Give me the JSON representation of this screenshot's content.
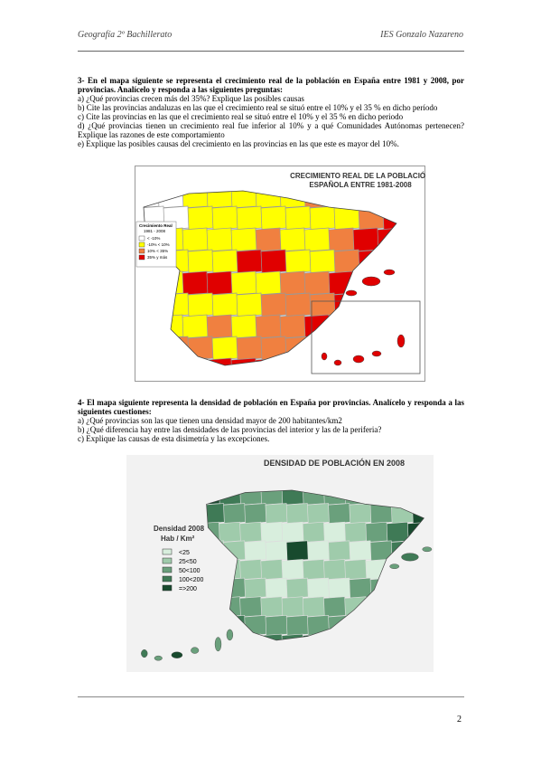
{
  "header": {
    "left": "Geografía 2º Bachillerato",
    "right": "IES Gonzalo Nazareno"
  },
  "section3": {
    "title": "3- En el mapa siguiente se representa el crecimiento real de la población en España entre 1981 y 2008, por provincias. Analícelo y responda a las siguientes preguntas:",
    "questions": [
      "a) ¿Qué provincias crecen más del 35%? Explique las posibles causas",
      "b) Cite las provincias andaluzas en las que el crecimiento real se situó entre el 10% y el 35 % en dicho período",
      "c) Cite las provincias en las que el crecimiento real se situó entre el 10% y el 35 % en dicho periodo",
      "d) ¿Qué provincias tienen un crecimiento real fue inferior al 10% y a qué Comunidades Autónomas pertenecen? Explique las razones de este comportamiento",
      "e) Explique las posibles causas del crecimiento en las provincias en las que este es mayor del 10%."
    ],
    "map": {
      "title": [
        "CRECIMIENTO REAL DE LA POBLACIÓN",
        "ESPAÑOLA ENTRE 1981-2008"
      ],
      "legend_title": [
        "Crecimiento Real",
        "1981 - 2008"
      ],
      "legend": [
        "< -10%",
        "-10% < 10%",
        "10% < 35%",
        "35% y más"
      ]
    }
  },
  "section4": {
    "title": "4- El mapa siguiente representa la densidad de población en España por provincias. Analícelo y responda a las siguientes cuestiones:",
    "questions": [
      "a) ¿Qué provincias son las que tienen una densidad mayor de 200 habitantes/km2",
      "b) ¿Qué diferencia hay entre las densidades de las provincias del interior y las de la periferia?",
      "c) Explique las causas de esta disimetría y las excepciones."
    ],
    "map": {
      "title": "DENSIDAD DE POBLACIÓN EN 2008",
      "legend_title": [
        "Densidad 2008",
        "Hab / Km²"
      ],
      "legend": [
        "<25",
        "25<50",
        "50<100",
        "100<200",
        "=>200"
      ]
    }
  },
  "page_number": "2"
}
